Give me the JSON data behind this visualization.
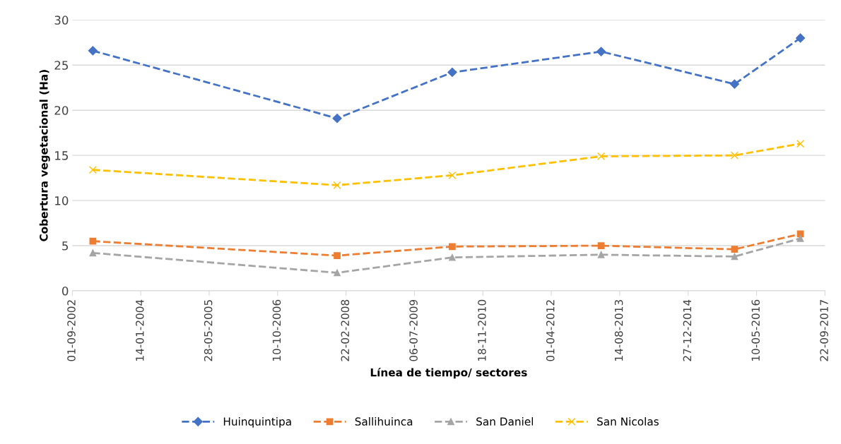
{
  "chart_data": {
    "type": "line",
    "xlabel": "Línea de tiempo/ sectores",
    "ylabel": "Cobertura vegetacional (Ha)",
    "x": [
      "2003-01-29",
      "2007-12-19",
      "2010-04-08",
      "2013-03-31",
      "2015-12-01",
      "2017-03-26"
    ],
    "series": [
      {
        "name": "Huinquintipa",
        "color": "#4472c4",
        "marker": "diamond",
        "values": [
          26.6,
          19.1,
          24.2,
          26.5,
          22.9,
          28.0
        ]
      },
      {
        "name": "Sallihuinca",
        "color": "#ed7d31",
        "marker": "square",
        "values": [
          5.5,
          3.9,
          4.9,
          5.0,
          4.6,
          6.3
        ]
      },
      {
        "name": "San Daniel",
        "color": "#a5a5a5",
        "marker": "triangle",
        "values": [
          4.2,
          2.0,
          3.7,
          4.0,
          3.8,
          5.8
        ]
      },
      {
        "name": "San Nicolas",
        "color": "#ffc000",
        "marker": "cross",
        "values": [
          13.4,
          11.7,
          12.8,
          14.9,
          15.0,
          16.3
        ]
      }
    ],
    "line_style": "dashed",
    "xlim": [
      "2002-09-01",
      "2017-09-22"
    ],
    "xticks": [
      {
        "value": "2002-09-01",
        "label": "01-09-2002"
      },
      {
        "value": "2004-01-14",
        "label": "14-01-2004"
      },
      {
        "value": "2005-05-28",
        "label": "28-05-2005"
      },
      {
        "value": "2006-10-10",
        "label": "10-10-2006"
      },
      {
        "value": "2008-02-22",
        "label": "22-02-2008"
      },
      {
        "value": "2009-07-06",
        "label": "06-07-2009"
      },
      {
        "value": "2010-11-18",
        "label": "18-11-2010"
      },
      {
        "value": "2012-04-01",
        "label": "01-04-2012"
      },
      {
        "value": "2013-08-14",
        "label": "14-08-2013"
      },
      {
        "value": "2014-12-27",
        "label": "27-12-2014"
      },
      {
        "value": "2016-05-10",
        "label": "10-05-2016"
      },
      {
        "value": "2017-09-22",
        "label": "22-09-2017"
      }
    ],
    "ylim": [
      0,
      30
    ],
    "yticks": [
      0,
      5,
      10,
      15,
      20,
      25,
      30
    ],
    "grid": "y",
    "legend": "bottom"
  }
}
